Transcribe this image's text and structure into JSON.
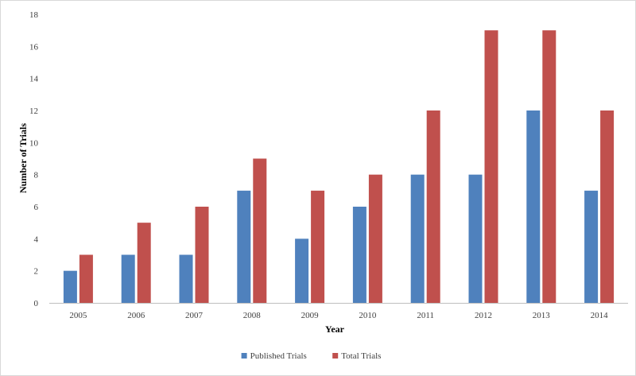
{
  "chart_data": {
    "type": "bar",
    "categories": [
      "2005",
      "2006",
      "2007",
      "2008",
      "2009",
      "2010",
      "2011",
      "2012",
      "2013",
      "2014"
    ],
    "series": [
      {
        "name": "Published Trials",
        "values": [
          2,
          3,
          3,
          7,
          4,
          6,
          8,
          8,
          12,
          7
        ],
        "color": "#4f81bd"
      },
      {
        "name": "Total Trials",
        "values": [
          3,
          5,
          6,
          9,
          7,
          8,
          12,
          17,
          17,
          12
        ],
        "color": "#c0504d"
      }
    ],
    "title": "",
    "xlabel": "Year",
    "ylabel": "Number of Trials",
    "ylim": [
      0,
      18
    ],
    "yticks": [
      "0",
      "2",
      "4",
      "6",
      "8",
      "10",
      "12",
      "14",
      "16",
      "18"
    ],
    "grid": false,
    "legend": "bottom"
  }
}
